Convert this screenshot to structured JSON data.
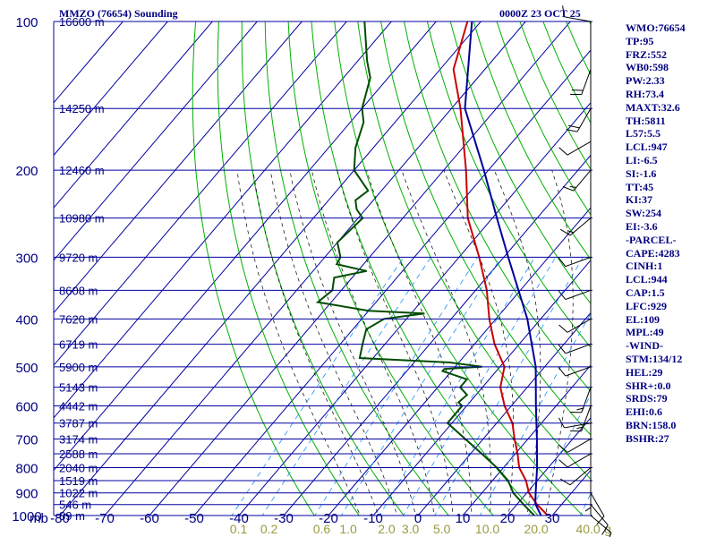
{
  "chart_data": {
    "type": "skew-t",
    "title": "MMZO (76654) Sounding",
    "time": "0000Z 23 OCT 25",
    "y_axis": {
      "label": "mb",
      "ticks": [
        100,
        200,
        300,
        400,
        500,
        600,
        700,
        800,
        900,
        1000
      ],
      "range": [
        100,
        1000
      ]
    },
    "x_axis": {
      "ticks": [
        -80,
        -70,
        -60,
        -50,
        -40,
        -30,
        -20,
        -10,
        0,
        10,
        20,
        30
      ],
      "range_at_1000mb": [
        -80,
        33
      ]
    },
    "height_labels": [
      {
        "p": 100,
        "label": "16600 m"
      },
      {
        "p": 150,
        "label": "14250 m"
      },
      {
        "p": 200,
        "label": "12460 m"
      },
      {
        "p": 250,
        "label": "10980 m"
      },
      {
        "p": 300,
        "label": "9720 m"
      },
      {
        "p": 350,
        "label": "8608 m"
      },
      {
        "p": 400,
        "label": "7620 m"
      },
      {
        "p": 450,
        "label": "6719 m"
      },
      {
        "p": 500,
        "label": "5900 m"
      },
      {
        "p": 550,
        "label": "5143 m"
      },
      {
        "p": 600,
        "label": "4442 m"
      },
      {
        "p": 650,
        "label": "3787 m"
      },
      {
        "p": 700,
        "label": "3174 m"
      },
      {
        "p": 750,
        "label": "2588 m"
      },
      {
        "p": 800,
        "label": "2040 m"
      },
      {
        "p": 850,
        "label": "1519 m"
      },
      {
        "p": 900,
        "label": "1022 m"
      },
      {
        "p": 950,
        "label": "546 m"
      },
      {
        "p": 1000,
        "label": "89 m"
      }
    ],
    "mixing_ratio_labels": [
      "0.1",
      "0.2",
      "0.6",
      "1.0",
      "2.0",
      "3.0",
      "5.0",
      "10.0",
      "20.0",
      "40.0",
      "g"
    ],
    "series": [
      {
        "name": "Temperature",
        "color": "#cc0000",
        "points": [
          [
            1005,
            31.0
          ],
          [
            1000,
            29.0
          ],
          [
            950,
            24.5
          ],
          [
            900,
            20.5
          ],
          [
            850,
            17.5
          ],
          [
            800,
            13.5
          ],
          [
            750,
            10.5
          ],
          [
            700,
            7.0
          ],
          [
            650,
            3.5
          ],
          [
            600,
            -1.5
          ],
          [
            550,
            -6.0
          ],
          [
            500,
            -9.0
          ],
          [
            450,
            -15.5
          ],
          [
            400,
            -21.5
          ],
          [
            350,
            -27.5
          ],
          [
            300,
            -35.5
          ],
          [
            250,
            -45.5
          ],
          [
            200,
            -55.0
          ],
          [
            150,
            -68.0
          ],
          [
            125,
            -77.0
          ],
          [
            100,
            -83.0
          ]
        ]
      },
      {
        "name": "Dewpoint",
        "color": "#004d00",
        "points": [
          [
            1000,
            26.0
          ],
          [
            950,
            21.5
          ],
          [
            900,
            17.0
          ],
          [
            850,
            13.5
          ],
          [
            800,
            8.5
          ],
          [
            750,
            2.5
          ],
          [
            700,
            -4.0
          ],
          [
            650,
            -11.0
          ],
          [
            625,
            -11.0
          ],
          [
            600,
            -11.0
          ],
          [
            590,
            -12.5
          ],
          [
            570,
            -12.0
          ],
          [
            550,
            -15.0
          ],
          [
            530,
            -15.0
          ],
          [
            510,
            -22.0
          ],
          [
            505,
            -22.0
          ],
          [
            500,
            -14.0
          ],
          [
            490,
            -22.0
          ],
          [
            480,
            -43.0
          ],
          [
            450,
            -45.0
          ],
          [
            420,
            -47.0
          ],
          [
            400,
            -45.0
          ],
          [
            390,
            -37.0
          ],
          [
            385,
            -50.0
          ],
          [
            370,
            -63.0
          ],
          [
            350,
            -62.0
          ],
          [
            330,
            -64.0
          ],
          [
            320,
            -58.0
          ],
          [
            310,
            -66.0
          ],
          [
            300,
            -66.5
          ],
          [
            280,
            -70.0
          ],
          [
            250,
            -69.0
          ],
          [
            240,
            -72.0
          ],
          [
            230,
            -74.0
          ],
          [
            220,
            -73.0
          ],
          [
            200,
            -80.0
          ],
          [
            180,
            -84.0
          ],
          [
            160,
            -87.0
          ],
          [
            150,
            -90.0
          ],
          [
            130,
            -94.0
          ],
          [
            120,
            -98.0
          ],
          [
            100,
            -106.0
          ]
        ]
      },
      {
        "name": "Parcel",
        "color": "#000099",
        "points": [
          [
            1000,
            27.5
          ],
          [
            947,
            24.0
          ],
          [
            900,
            22.0
          ],
          [
            800,
            17.5
          ],
          [
            700,
            12.0
          ],
          [
            600,
            5.5
          ],
          [
            500,
            -2.0
          ],
          [
            400,
            -13.0
          ],
          [
            300,
            -29.0
          ],
          [
            250,
            -39.0
          ],
          [
            200,
            -51.0
          ],
          [
            150,
            -67.0
          ],
          [
            100,
            -82.0
          ]
        ]
      }
    ],
    "wind_barbs": [
      {
        "p": 1000,
        "dir": 130,
        "spd": 10
      },
      {
        "p": 950,
        "dir": 140,
        "spd": 10
      },
      {
        "p": 900,
        "dir": 150,
        "spd": 10
      },
      {
        "p": 850,
        "dir": 180,
        "spd": 5
      },
      {
        "p": 800,
        "dir": 230,
        "spd": 10
      },
      {
        "p": 750,
        "dir": 240,
        "spd": 10
      },
      {
        "p": 700,
        "dir": 240,
        "spd": 10
      },
      {
        "p": 650,
        "dir": 260,
        "spd": 10
      },
      {
        "p": 600,
        "dir": 200,
        "spd": 15
      },
      {
        "p": 550,
        "dir": 200,
        "spd": 15
      },
      {
        "p": 500,
        "dir": 250,
        "spd": 10
      },
      {
        "p": 450,
        "dir": 250,
        "spd": 10
      },
      {
        "p": 400,
        "dir": 240,
        "spd": 10
      },
      {
        "p": 350,
        "dir": 250,
        "spd": 10
      },
      {
        "p": 300,
        "dir": 250,
        "spd": 10
      },
      {
        "p": 250,
        "dir": 230,
        "spd": 15
      },
      {
        "p": 200,
        "dir": 220,
        "spd": 15
      },
      {
        "p": 175,
        "dir": 240,
        "spd": 10
      },
      {
        "p": 150,
        "dir": 210,
        "spd": 20
      },
      {
        "p": 125,
        "dir": 200,
        "spd": 20
      },
      {
        "p": 100,
        "dir": 280,
        "spd": 10
      }
    ]
  },
  "indices": [
    "WMO:76654",
    "TP:95",
    "FRZ:552",
    "WB0:598",
    "PW:2.33",
    "RH:73.4",
    "MAXT:32.6",
    "TH:5811",
    "L57:5.5",
    "LCL:947",
    "LI:-6.5",
    "SI:-1.6",
    "TT:45",
    "KI:37",
    "SW:254",
    "EI:-3.6",
    "-PARCEL-",
    "CAPE:4283",
    "CINH:1",
    "LCL:944",
    "CAP:1.5",
    "LFC:929",
    "EL:109",
    "MPL:49",
    "-WIND-",
    "STM:134/12",
    "HEL:29",
    "SHR+:0.0",
    "SRDS:79",
    "EHI:0.6",
    "BRN:158.0",
    "BSHR:27"
  ],
  "colors": {
    "grid": "#0000a0",
    "axis_text": "#000080",
    "dry_adiabat": "#00b000",
    "moist_adiabat": "#000000",
    "mixing_ratio": "#1e90ff",
    "mixing_label": "#9a9a40",
    "temperature": "#cc0000",
    "dewpoint": "#004d00",
    "parcel": "#000099"
  }
}
